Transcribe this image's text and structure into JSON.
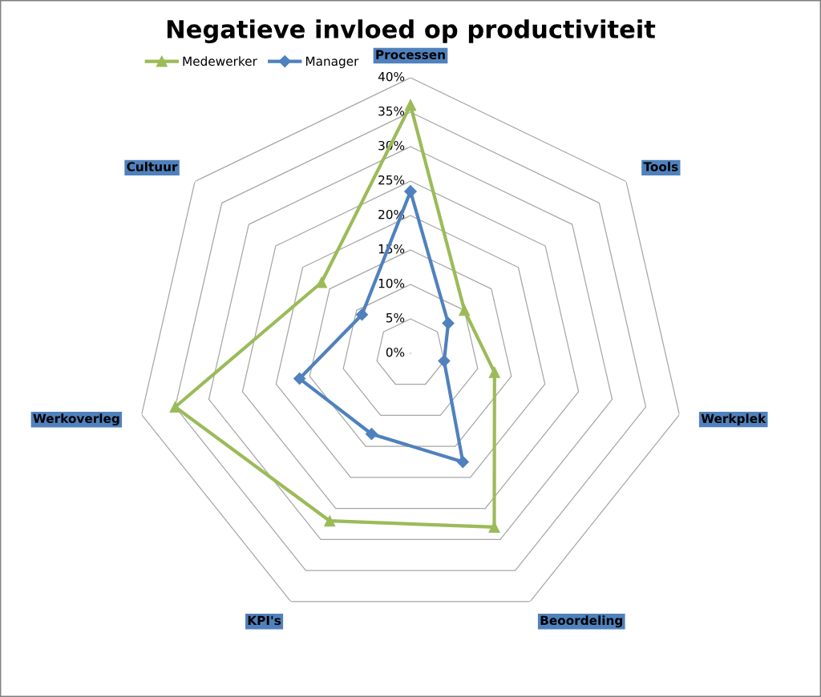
{
  "chart_data": {
    "type": "radar",
    "title": "Negatieve invloed op productiviteit",
    "categories": [
      "Processen",
      "Tools",
      "Werkplek",
      "Beoordeling",
      "KPI's",
      "Werkoverleg",
      "Cultuur"
    ],
    "series": [
      {
        "name": "Medewerker",
        "color": "#9bbb59",
        "marker": "triangle",
        "values": [
          36,
          10,
          12.5,
          28,
          27,
          35,
          16.5
        ]
      },
      {
        "name": "Manager",
        "color": "#4f81bd",
        "marker": "diamond",
        "values": [
          23.5,
          7,
          5,
          17.5,
          13,
          16.5,
          9
        ]
      }
    ],
    "ylim": [
      0,
      40
    ],
    "yticks": [
      {
        "value": 0,
        "label": "0%"
      },
      {
        "value": 5,
        "label": "5%"
      },
      {
        "value": 10,
        "label": "10%"
      },
      {
        "value": 15,
        "label": "15%"
      },
      {
        "value": 20,
        "label": "20%"
      },
      {
        "value": 25,
        "label": "25%"
      },
      {
        "value": 30,
        "label": "30%"
      },
      {
        "value": 35,
        "label": "35%"
      },
      {
        "value": 40,
        "label": "40%"
      }
    ],
    "grid": true,
    "legend": "top left"
  }
}
